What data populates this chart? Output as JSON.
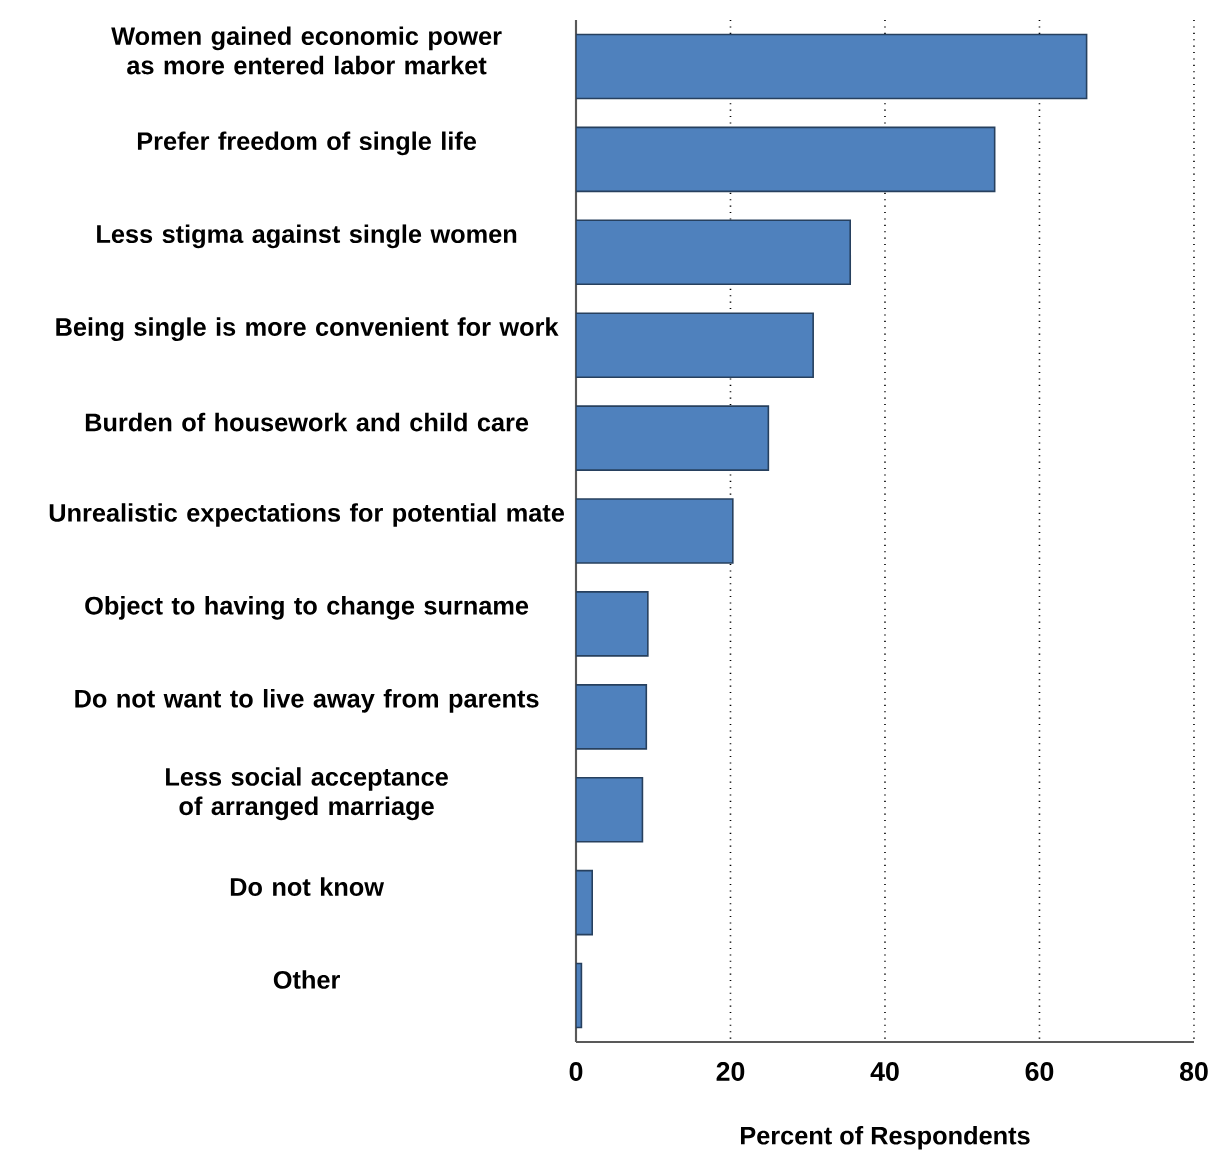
{
  "chart_data": {
    "type": "bar",
    "orientation": "horizontal",
    "categories": [
      "Women gained economic power as more entered labor market",
      "Prefer freedom of single life",
      "Less stigma against single women",
      "Being single is more convenient for work",
      "Burden of housework and child care",
      "Unrealistic expectations for potential mate",
      "Object to having to change surname",
      "Do not want to live away from parents",
      "Less social acceptance of arranged marriage",
      "Do not know",
      "Other"
    ],
    "values": [
      66.1,
      54.2,
      35.5,
      30.7,
      24.9,
      20.3,
      9.3,
      9.1,
      8.6,
      2.1,
      0.7
    ],
    "color": "#4f81bd",
    "xlabel": "Percent of Respondents",
    "xlim": [
      0,
      80
    ],
    "xticks": [
      0,
      20,
      40,
      60,
      80
    ],
    "grid": "x"
  }
}
